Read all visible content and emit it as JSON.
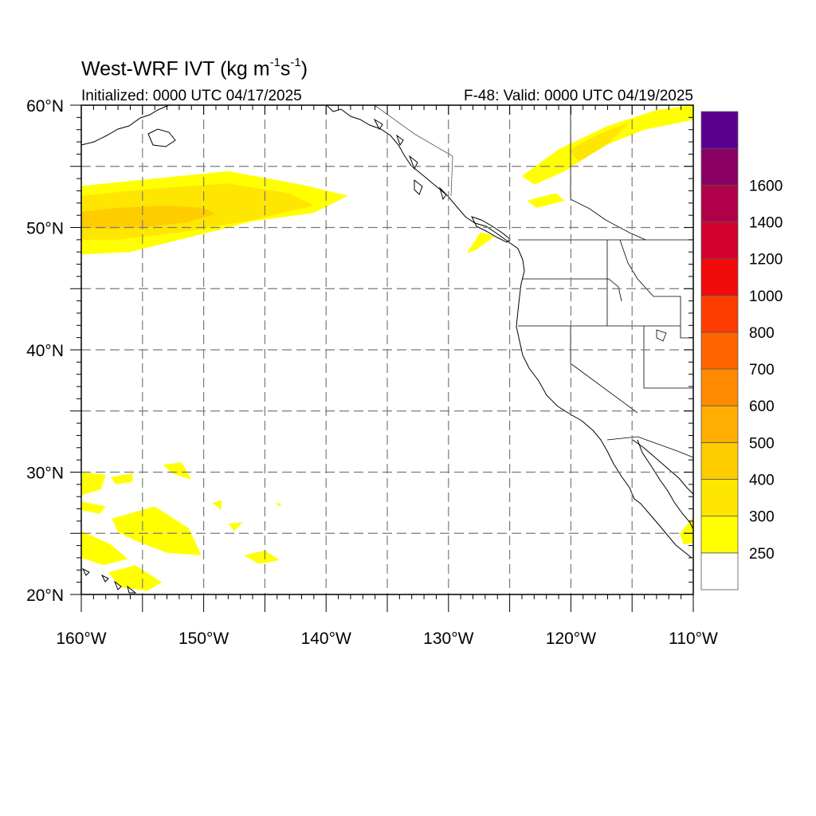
{
  "header": {
    "title_prefix": "West-WRF IVT (kg m",
    "title_exp1": "-1",
    "title_mid": "s",
    "title_exp2": "-1",
    "title_suffix": ")",
    "initialized": "Initialized: 0000 UTC 04/17/2025",
    "valid": "F-48: Valid: 0000 UTC 04/19/2025"
  },
  "map": {
    "lon_range": [
      -160,
      -110
    ],
    "lat_range": [
      20,
      60
    ],
    "gridline_style": "dashed",
    "lon_labels": [
      {
        "value": -160,
        "label": "160°W"
      },
      {
        "value": -150,
        "label": "150°W"
      },
      {
        "value": -140,
        "label": "140°W"
      },
      {
        "value": -130,
        "label": "130°W"
      },
      {
        "value": -120,
        "label": "120°W"
      },
      {
        "value": -110,
        "label": "110°W"
      }
    ],
    "lat_labels": [
      {
        "value": 60,
        "label": "60°N"
      },
      {
        "value": 50,
        "label": "50°N"
      },
      {
        "value": 40,
        "label": "40°N"
      },
      {
        "value": 30,
        "label": "30°N"
      },
      {
        "value": 20,
        "label": "20°N"
      }
    ],
    "lon_gridlines": [
      -155,
      -150,
      -145,
      -140,
      -135,
      -130,
      -125,
      -120,
      -115
    ],
    "lat_gridlines": [
      25,
      30,
      35,
      40,
      45,
      50,
      55
    ]
  },
  "colorbar": {
    "levels": [
      {
        "label": "",
        "color": "#ffffff"
      },
      {
        "label": "250",
        "color": "#ffff00"
      },
      {
        "label": "300",
        "color": "#ffe600"
      },
      {
        "label": "400",
        "color": "#ffcc00"
      },
      {
        "label": "500",
        "color": "#ffad00"
      },
      {
        "label": "600",
        "color": "#ff8a00"
      },
      {
        "label": "700",
        "color": "#ff6400"
      },
      {
        "label": "800",
        "color": "#ff3c00"
      },
      {
        "label": "1000",
        "color": "#f00a0a"
      },
      {
        "label": "1200",
        "color": "#d4002e"
      },
      {
        "label": "1400",
        "color": "#b0004a"
      },
      {
        "label": "1600",
        "color": "#8a0064"
      },
      {
        "label": "",
        "color": "#5a0090"
      }
    ]
  },
  "ivt_regions": [
    {
      "name": "north-pacific-ar",
      "level": 250,
      "poly": [
        [
          -160,
          53.4
        ],
        [
          -154,
          54
        ],
        [
          -148,
          54.6
        ],
        [
          -142,
          53.5
        ],
        [
          -138.2,
          52.6
        ],
        [
          -141,
          51.2
        ],
        [
          -146,
          50.5
        ],
        [
          -152,
          49
        ],
        [
          -156,
          48
        ],
        [
          -160,
          47.8
        ]
      ]
    },
    {
      "name": "north-pacific-ar",
      "level": 300,
      "poly": [
        [
          -160,
          52.6
        ],
        [
          -154,
          53.2
        ],
        [
          -148,
          53.6
        ],
        [
          -143,
          52.8
        ],
        [
          -141,
          51.8
        ],
        [
          -146,
          50.6
        ],
        [
          -152,
          49.6
        ],
        [
          -157,
          49
        ],
        [
          -160,
          49
        ]
      ]
    },
    {
      "name": "north-pacific-ar",
      "level": 400,
      "poly": [
        [
          -160,
          51.3
        ],
        [
          -157,
          51.6
        ],
        [
          -153,
          51.8
        ],
        [
          -150,
          51.6
        ],
        [
          -149,
          51.1
        ],
        [
          -151.5,
          50.4
        ],
        [
          -155,
          50
        ],
        [
          -158,
          49.9
        ],
        [
          -160,
          50
        ]
      ]
    },
    {
      "name": "canada-plume",
      "level": 250,
      "poly": [
        [
          -124,
          54.2
        ],
        [
          -121,
          56.4
        ],
        [
          -117,
          58.3
        ],
        [
          -113,
          59.6
        ],
        [
          -110,
          60
        ],
        [
          -110,
          58.8
        ],
        [
          -114,
          58
        ],
        [
          -117.5,
          56.6
        ],
        [
          -120.5,
          54.6
        ],
        [
          -123,
          53.5
        ]
      ]
    },
    {
      "name": "canada-plume",
      "level": 300,
      "poly": [
        [
          -120.2,
          56.3
        ],
        [
          -117.8,
          57.6
        ],
        [
          -115.2,
          58.6
        ],
        [
          -117,
          56.8
        ],
        [
          -119.3,
          55.4
        ]
      ]
    },
    {
      "name": "canada-plume",
      "level": 250,
      "poly": [
        [
          -123.6,
          52.2
        ],
        [
          -121.2,
          52.8
        ],
        [
          -120.5,
          52.2
        ],
        [
          -122.8,
          51.6
        ]
      ]
    },
    {
      "name": "vancouver-island-patch",
      "level": 250,
      "poly": [
        [
          -128.5,
          47.9
        ],
        [
          -127.4,
          49.6
        ],
        [
          -126.2,
          49.3
        ],
        [
          -127.7,
          48.2
        ]
      ]
    },
    {
      "name": "subtropics",
      "level": 250,
      "poly": [
        [
          -160,
          30
        ],
        [
          -158,
          29.8
        ],
        [
          -158.4,
          28.6
        ],
        [
          -160,
          28.1
        ]
      ]
    },
    {
      "name": "subtropics",
      "level": 250,
      "poly": [
        [
          -160,
          27.6
        ],
        [
          -158,
          27.2
        ],
        [
          -158.5,
          26.6
        ],
        [
          -160,
          26.9
        ]
      ]
    },
    {
      "name": "subtropics",
      "level": 250,
      "poly": [
        [
          -160,
          25.2
        ],
        [
          -157.6,
          24.1
        ],
        [
          -156.2,
          22.9
        ],
        [
          -158.2,
          22.4
        ],
        [
          -160,
          23
        ]
      ]
    },
    {
      "name": "subtropics",
      "level": 250,
      "poly": [
        [
          -157.5,
          26.2
        ],
        [
          -154,
          27.2
        ],
        [
          -151.2,
          25.4
        ],
        [
          -150.2,
          23.2
        ],
        [
          -153,
          23.4
        ],
        [
          -155.6,
          24.4
        ],
        [
          -157,
          25.1
        ]
      ]
    },
    {
      "name": "subtropics",
      "level": 250,
      "poly": [
        [
          -157.8,
          21.8
        ],
        [
          -155.6,
          22.4
        ],
        [
          -153.4,
          21
        ],
        [
          -154.6,
          20.3
        ],
        [
          -156.8,
          20.6
        ]
      ]
    },
    {
      "name": "subtropics",
      "level": 250,
      "poly": [
        [
          -157.6,
          29.6
        ],
        [
          -155.8,
          29.9
        ],
        [
          -155.8,
          29.2
        ],
        [
          -157.2,
          29
        ]
      ]
    },
    {
      "name": "subtropics",
      "level": 250,
      "poly": [
        [
          -153.3,
          30.6
        ],
        [
          -151.8,
          30.8
        ],
        [
          -151,
          29.4
        ],
        [
          -152.6,
          29.9
        ]
      ]
    },
    {
      "name": "subtropics",
      "level": 250,
      "poly": [
        [
          -149.3,
          27.5
        ],
        [
          -148.5,
          27.7
        ],
        [
          -148.6,
          26.9
        ]
      ]
    },
    {
      "name": "subtropics",
      "level": 250,
      "poly": [
        [
          -148,
          25.8
        ],
        [
          -146.8,
          25.9
        ],
        [
          -147.5,
          25.2
        ]
      ]
    },
    {
      "name": "subtropics",
      "level": 250,
      "poly": [
        [
          -146.7,
          23.2
        ],
        [
          -145,
          23.6
        ],
        [
          -143.8,
          22.8
        ],
        [
          -145.5,
          22.5
        ]
      ]
    },
    {
      "name": "subtropics",
      "level": 250,
      "poly": [
        [
          -144.1,
          27.5
        ],
        [
          -143.6,
          27.4
        ],
        [
          -143.9,
          27.2
        ]
      ]
    },
    {
      "name": "mexico-coast",
      "level": 250,
      "poly": [
        [
          -111.1,
          25
        ],
        [
          -110,
          26.3
        ],
        [
          -110,
          24.2
        ],
        [
          -110.8,
          24.1
        ]
      ]
    }
  ]
}
